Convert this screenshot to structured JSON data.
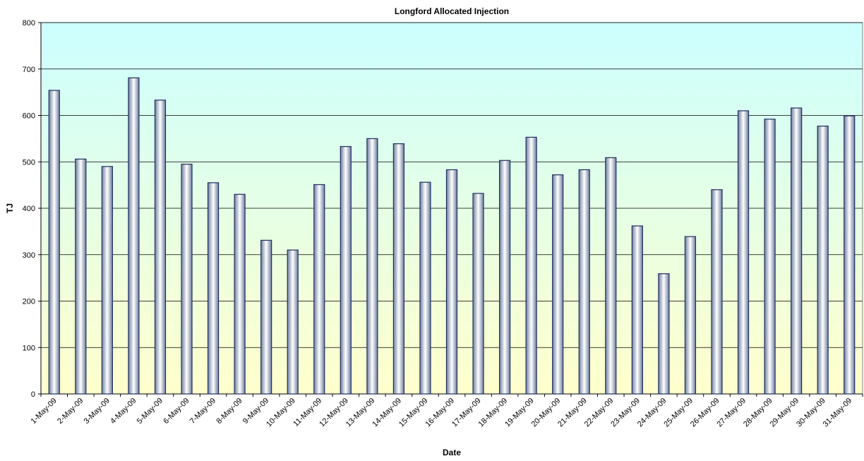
{
  "chart_data": {
    "type": "bar",
    "title": "Longford Allocated Injection",
    "x_label": "Date",
    "y_label": "TJ",
    "categories": [
      "1-May-09",
      "2-May-09",
      "3-May-09",
      "4-May-09",
      "5-May-09",
      "6-May-09",
      "7-May-09",
      "8-May-09",
      "9-May-09",
      "10-May-09",
      "11-May-09",
      "12-May-09",
      "13-May-09",
      "14-May-09",
      "15-May-09",
      "16-May-09",
      "17-May-09",
      "18-May-09",
      "19-May-09",
      "20-May-09",
      "21-May-09",
      "22-May-09",
      "23-May-09",
      "24-May-09",
      "25-May-09",
      "26-May-09",
      "27-May-09",
      "28-May-09",
      "29-May-09",
      "30-May-09",
      "31-May-09"
    ],
    "values": [
      654,
      506,
      490,
      681,
      633,
      495,
      455,
      430,
      331,
      310,
      451,
      533,
      550,
      539,
      456,
      483,
      432,
      503,
      553,
      472,
      483,
      509,
      362,
      259,
      339,
      440,
      610,
      592,
      616,
      577,
      599
    ],
    "color": "#1f2f5f",
    "ylim": [
      0,
      800
    ],
    "yticks": [
      0,
      100,
      200,
      300,
      400,
      500,
      600,
      700,
      800
    ],
    "grid": true
  }
}
